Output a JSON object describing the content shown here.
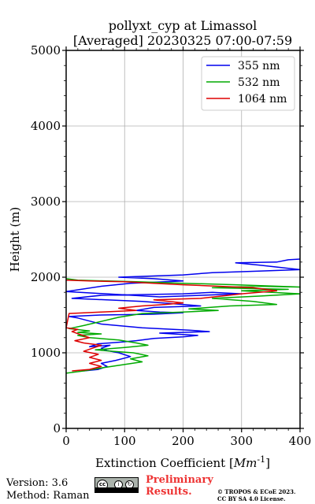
{
  "chart_data": {
    "type": "line",
    "title": "pollyxt_cyp at Limassol",
    "subtitle": "[Averaged] 20230325 07:00-07:59",
    "xlabel": "Extinction Coefficient [",
    "xlabel_unit": "Mm",
    "xlabel_exp": "-1",
    "xlabel_end": "]",
    "ylabel": "Height (m)",
    "xlim": [
      0,
      400
    ],
    "ylim": [
      0,
      5000
    ],
    "xticks": [
      0,
      100,
      200,
      300,
      400
    ],
    "yticks": [
      0,
      1000,
      2000,
      3000,
      4000,
      5000
    ],
    "grid": true,
    "legend_position": "top-right",
    "series": [
      {
        "name": "355 nm",
        "color": "#0000ee",
        "points": [
          [
            30,
            760
          ],
          [
            55,
            780
          ],
          [
            70,
            820
          ],
          [
            60,
            860
          ],
          [
            85,
            900
          ],
          [
            110,
            950
          ],
          [
            90,
            1000
          ],
          [
            70,
            1030
          ],
          [
            60,
            1060
          ],
          [
            75,
            1100
          ],
          [
            40,
            1080
          ],
          [
            55,
            1120
          ],
          [
            90,
            1140
          ],
          [
            120,
            1160
          ],
          [
            150,
            1190
          ],
          [
            200,
            1210
          ],
          [
            225,
            1230
          ],
          [
            160,
            1260
          ],
          [
            245,
            1280
          ],
          [
            210,
            1300
          ],
          [
            130,
            1330
          ],
          [
            60,
            1380
          ],
          [
            40,
            1420
          ],
          [
            20,
            1460
          ],
          [
            5,
            1480
          ],
          [
            60,
            1500
          ],
          [
            150,
            1510
          ],
          [
            200,
            1530
          ],
          [
            160,
            1540
          ],
          [
            120,
            1560
          ],
          [
            150,
            1600
          ],
          [
            230,
            1620
          ],
          [
            200,
            1640
          ],
          [
            130,
            1680
          ],
          [
            10,
            1720
          ],
          [
            60,
            1760
          ],
          [
            200,
            1780
          ],
          [
            250,
            1800
          ],
          [
            300,
            1780
          ],
          [
            230,
            1760
          ],
          [
            160,
            1740
          ],
          [
            0,
            1810
          ],
          [
            60,
            1880
          ],
          [
            110,
            1920
          ],
          [
            200,
            1950
          ],
          [
            150,
            1980
          ],
          [
            90,
            2000
          ],
          [
            200,
            2030
          ],
          [
            250,
            2060
          ],
          [
            330,
            2080
          ],
          [
            400,
            2100
          ],
          [
            330,
            2160
          ],
          [
            290,
            2190
          ],
          [
            360,
            2200
          ],
          [
            380,
            2230
          ],
          [
            400,
            2240
          ]
        ]
      },
      {
        "name": "532 nm",
        "color": "#00aa00",
        "points": [
          [
            0,
            730
          ],
          [
            30,
            760
          ],
          [
            60,
            800
          ],
          [
            95,
            840
          ],
          [
            130,
            880
          ],
          [
            110,
            920
          ],
          [
            140,
            960
          ],
          [
            115,
            1000
          ],
          [
            80,
            1020
          ],
          [
            50,
            1040
          ],
          [
            100,
            1070
          ],
          [
            140,
            1100
          ],
          [
            120,
            1130
          ],
          [
            90,
            1170
          ],
          [
            40,
            1200
          ],
          [
            20,
            1230
          ],
          [
            60,
            1250
          ],
          [
            20,
            1270
          ],
          [
            40,
            1290
          ],
          [
            5,
            1320
          ],
          [
            30,
            1360
          ],
          [
            90,
            1470
          ],
          [
            130,
            1520
          ],
          [
            200,
            1540
          ],
          [
            260,
            1560
          ],
          [
            210,
            1580
          ],
          [
            245,
            1600
          ],
          [
            280,
            1620
          ],
          [
            360,
            1640
          ],
          [
            320,
            1680
          ],
          [
            250,
            1720
          ],
          [
            330,
            1750
          ],
          [
            400,
            1780
          ],
          [
            300,
            1820
          ],
          [
            380,
            1840
          ],
          [
            250,
            1860
          ],
          [
            330,
            1880
          ],
          [
            400,
            1870
          ],
          [
            290,
            1900
          ],
          [
            200,
            1920
          ],
          [
            120,
            1940
          ],
          [
            20,
            1960
          ],
          [
            0,
            1980
          ]
        ]
      },
      {
        "name": "1064 nm",
        "color": "#dd0000",
        "points": [
          [
            10,
            760
          ],
          [
            40,
            780
          ],
          [
            60,
            820
          ],
          [
            40,
            860
          ],
          [
            60,
            900
          ],
          [
            40,
            940
          ],
          [
            55,
            980
          ],
          [
            30,
            1020
          ],
          [
            45,
            1060
          ],
          [
            60,
            1100
          ],
          [
            30,
            1130
          ],
          [
            15,
            1160
          ],
          [
            40,
            1200
          ],
          [
            25,
            1240
          ],
          [
            10,
            1280
          ],
          [
            20,
            1310
          ],
          [
            0,
            1330
          ],
          [
            5,
            1520
          ],
          [
            60,
            1540
          ],
          [
            120,
            1560
          ],
          [
            90,
            1590
          ],
          [
            130,
            1620
          ],
          [
            170,
            1640
          ],
          [
            200,
            1660
          ],
          [
            150,
            1700
          ],
          [
            230,
            1720
          ],
          [
            300,
            1780
          ],
          [
            360,
            1820
          ],
          [
            320,
            1860
          ],
          [
            260,
            1880
          ],
          [
            200,
            1900
          ],
          [
            150,
            1920
          ],
          [
            100,
            1940
          ],
          [
            40,
            1950
          ],
          [
            0,
            1960
          ]
        ]
      }
    ]
  },
  "footer": {
    "version": "Version: 3.6",
    "method": "Method: Raman",
    "preliminary_line1": "Preliminary",
    "preliminary_line2": "Results.",
    "copyright_line1": "© TROPOS & ECoE 2023.",
    "copyright_line2": "CC BY SA 4.0 License.",
    "cc_label": "cc",
    "cc_by": "BY",
    "cc_sa": "SA"
  }
}
